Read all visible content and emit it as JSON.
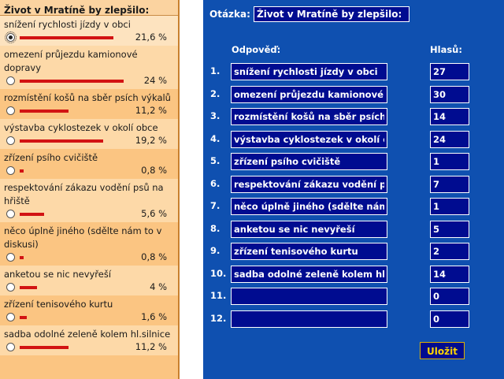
{
  "poll": {
    "title": "Život v Mratíně by zlepšilo:",
    "options": [
      {
        "label": "snížení rychlosti jízdy v obci",
        "percent": "21,6 %",
        "share": 0.216,
        "selected": true
      },
      {
        "label": "omezení průjezdu kamionové dopravy",
        "percent": "24 %",
        "share": 0.24,
        "selected": false
      },
      {
        "label": "rozmístění košů na sběr psích výkalů",
        "percent": "11,2 %",
        "share": 0.112,
        "selected": false
      },
      {
        "label": "výstavba cyklostezek v okolí obce",
        "percent": "19,2 %",
        "share": 0.192,
        "selected": false
      },
      {
        "label": "zřízení psího cvičiště",
        "percent": "0,8 %",
        "share": 0.008,
        "selected": false
      },
      {
        "label": "respektování zákazu vodění psů na hřiště",
        "percent": "5,6 %",
        "share": 0.056,
        "selected": false
      },
      {
        "label": "něco úplně jiného (sdělte nám to v diskusi)",
        "percent": "0,8 %",
        "share": 0.008,
        "selected": false
      },
      {
        "label": "anketou se nic nevyřeší",
        "percent": "4 %",
        "share": 0.04,
        "selected": false
      },
      {
        "label": "zřízení tenisového kurtu",
        "percent": "1,6 %",
        "share": 0.016,
        "selected": false
      },
      {
        "label": "sadba odolné zeleně kolem hl.silnice",
        "percent": "11,2 %",
        "share": 0.112,
        "selected": false
      }
    ]
  },
  "admin": {
    "question_label": "Otázka:",
    "question_value": "Život v Mratíně by zlepšilo:",
    "answer_header": "Odpověď:",
    "votes_header": "Hlasů:",
    "rows": [
      {
        "num": "1.",
        "answer": "snížení rychlosti jízdy v obci",
        "votes": "27"
      },
      {
        "num": "2.",
        "answer": "omezení průjezdu kamionové dopravy",
        "votes": "30"
      },
      {
        "num": "3.",
        "answer": "rozmístění košů na sběr psích výkalů",
        "votes": "14"
      },
      {
        "num": "4.",
        "answer": "výstavba cyklostezek v okolí obce",
        "votes": "24"
      },
      {
        "num": "5.",
        "answer": "zřízení psího cvičiště",
        "votes": "1"
      },
      {
        "num": "6.",
        "answer": "respektování zákazu vodění psů na hřiště",
        "votes": "7"
      },
      {
        "num": "7.",
        "answer": "něco úplně jiného (sdělte nám to v diskusi)",
        "votes": "1"
      },
      {
        "num": "8.",
        "answer": "anketou se nic nevyřeší",
        "votes": "5"
      },
      {
        "num": "9.",
        "answer": "zřízení tenisového kurtu",
        "votes": "2"
      },
      {
        "num": "10.",
        "answer": "sadba odolné zeleně kolem hl.silnice",
        "votes": "14"
      },
      {
        "num": "11.",
        "answer": "",
        "votes": "0"
      },
      {
        "num": "12.",
        "answer": "",
        "votes": "0"
      }
    ],
    "save_label": "Uložit"
  }
}
